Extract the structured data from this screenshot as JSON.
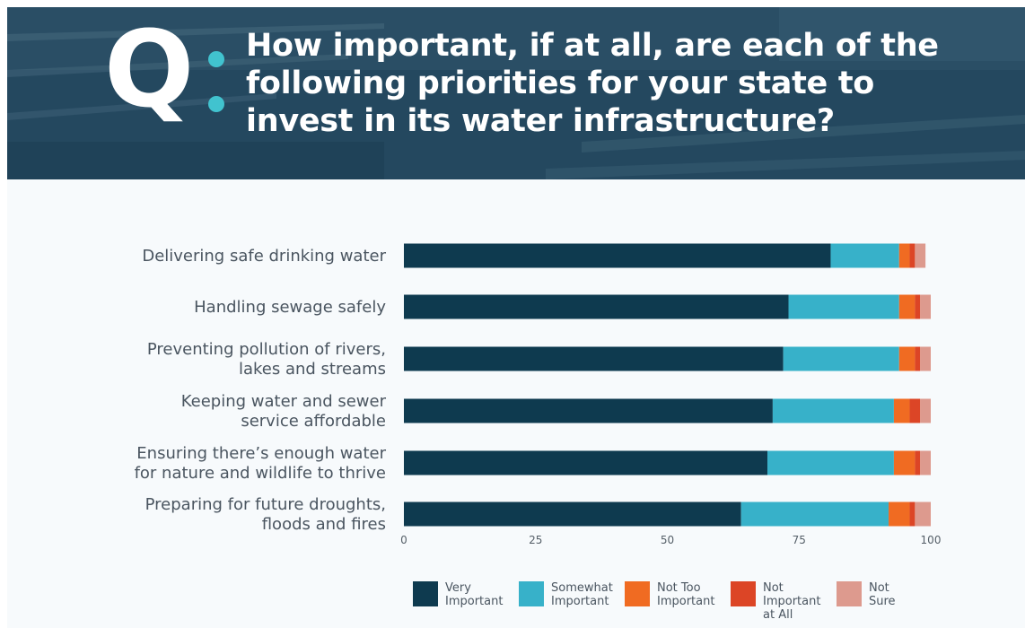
{
  "header": {
    "q_letter": "Q",
    "title_lines": [
      "How important, if at all, are each of the",
      "following priorities for your state to",
      "invest in its water infrastructure?"
    ]
  },
  "colors": {
    "accent_dot": "#41c3cf",
    "label_text": "#4a5560"
  },
  "chart_data": {
    "type": "bar",
    "orientation": "horizontal",
    "stacked": true,
    "categories": [
      [
        "Delivering safe drinking water"
      ],
      [
        "Handling sewage safely"
      ],
      [
        "Preventing pollution of rivers,",
        "lakes and streams"
      ],
      [
        "Keeping water and sewer",
        "service affordable"
      ],
      [
        "Ensuring there’s enough water",
        "for nature and wildlife to thrive"
      ],
      [
        "Preparing for future droughts,",
        "floods and fires"
      ]
    ],
    "series": [
      {
        "name": "Very Important",
        "color": "#0e3a4f",
        "values": [
          81,
          73,
          72,
          70,
          69,
          64
        ]
      },
      {
        "name": "Somewhat Important",
        "color": "#37b1c9",
        "values": [
          13,
          21,
          22,
          23,
          24,
          28
        ]
      },
      {
        "name": "Not Too Important",
        "color": "#f06b22",
        "values": [
          2,
          3,
          3,
          3,
          4,
          4
        ]
      },
      {
        "name": "Not Important at All",
        "color": "#dc4526",
        "values": [
          1,
          1,
          1,
          2,
          1,
          1
        ]
      },
      {
        "name": "Not Sure",
        "color": "#dd9a8e",
        "values": [
          2,
          2,
          2,
          2,
          2,
          3
        ]
      }
    ],
    "legend_labels": [
      "Very\nImportant",
      "Somewhat\nImportant",
      "Not Too\nImportant",
      "Not Important\nat All",
      "Not\nSure"
    ],
    "x_ticks": [
      0,
      25,
      50,
      75,
      100
    ],
    "xlim": [
      0,
      100
    ],
    "legend_position": "bottom",
    "grid": false
  }
}
